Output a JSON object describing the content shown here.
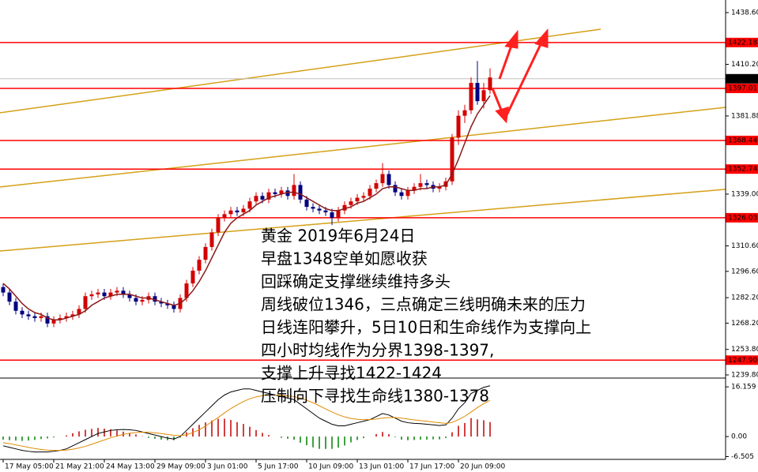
{
  "chart_data": {
    "type": "candlestick",
    "categories": [
      "17 May 05:00",
      null,
      null,
      null,
      null,
      null,
      null,
      null,
      "21 May 21:00",
      null,
      null,
      null,
      null,
      null,
      null,
      null,
      "24 May 13:00",
      null,
      null,
      null,
      null,
      null,
      null,
      null,
      "29 May 09:00",
      null,
      null,
      null,
      null,
      null,
      null,
      null,
      "3 Jun 01:00",
      null,
      null,
      null,
      null,
      null,
      null,
      null,
      "5 Jun 17:00",
      null,
      null,
      null,
      null,
      null,
      null,
      null,
      "10 Jun 09:00",
      null,
      null,
      null,
      null,
      null,
      null,
      null,
      "13 Jun 01:00",
      null,
      null,
      null,
      null,
      null,
      null,
      null,
      "17 Jun 17:00",
      null,
      null,
      null,
      null,
      null,
      null,
      null,
      "20 Jun 09:00",
      null,
      null,
      null,
      null,
      null
    ],
    "open": [
      1288,
      1285,
      1280,
      1275,
      1273,
      1272,
      1271,
      1272,
      1268,
      1270,
      1271,
      1272,
      1273,
      1276,
      1283,
      1284,
      1285,
      1283,
      1285,
      1286,
      1284,
      1282,
      1280,
      1281,
      1283,
      1280,
      1279,
      1278,
      1276,
      1282,
      1290,
      1297,
      1303,
      1310,
      1318,
      1326,
      1328,
      1330,
      1329,
      1331,
      1335,
      1338,
      1336,
      1340,
      1339,
      1341,
      1338,
      1344,
      1336,
      1332,
      1331,
      1330,
      1329,
      1326,
      1330,
      1333,
      1335,
      1337,
      1338,
      1342,
      1345,
      1350,
      1344,
      1340,
      1338,
      1341,
      1343,
      1345,
      1344,
      1342,
      1343,
      1346,
      1370,
      1382,
      1385,
      1400,
      1390,
      1396
    ],
    "high": [
      1290,
      1287,
      1282,
      1277,
      1275,
      1274,
      1274,
      1274,
      1272,
      1273,
      1274,
      1275,
      1278,
      1285,
      1286,
      1287,
      1287,
      1287,
      1288,
      1288,
      1286,
      1284,
      1283,
      1285,
      1285,
      1282,
      1281,
      1280,
      1284,
      1292,
      1299,
      1305,
      1312,
      1320,
      1328,
      1330,
      1332,
      1332,
      1333,
      1337,
      1340,
      1340,
      1342,
      1342,
      1343,
      1343,
      1350,
      1346,
      1338,
      1334,
      1333,
      1332,
      1331,
      1332,
      1335,
      1337,
      1339,
      1340,
      1344,
      1347,
      1356,
      1352,
      1346,
      1342,
      1343,
      1345,
      1350,
      1347,
      1346,
      1345,
      1348,
      1372,
      1385,
      1388,
      1403,
      1412,
      1400,
      1408
    ],
    "low": [
      1283,
      1278,
      1273,
      1271,
      1270,
      1269,
      1269,
      1266,
      1266,
      1268,
      1269,
      1270,
      1271,
      1274,
      1281,
      1282,
      1281,
      1281,
      1283,
      1282,
      1280,
      1278,
      1278,
      1279,
      1278,
      1277,
      1276,
      1274,
      1274,
      1280,
      1288,
      1295,
      1301,
      1308,
      1316,
      1324,
      1326,
      1327,
      1327,
      1329,
      1333,
      1334,
      1334,
      1337,
      1337,
      1336,
      1336,
      1334,
      1330,
      1329,
      1328,
      1327,
      1322,
      1324,
      1328,
      1331,
      1333,
      1335,
      1336,
      1340,
      1343,
      1342,
      1338,
      1336,
      1336,
      1339,
      1341,
      1342,
      1340,
      1340,
      1341,
      1344,
      1366,
      1378,
      1383,
      1388,
      1386,
      1394
    ],
    "close": [
      1285,
      1280,
      1275,
      1273,
      1272,
      1271,
      1272,
      1268,
      1270,
      1271,
      1272,
      1273,
      1276,
      1283,
      1284,
      1285,
      1283,
      1285,
      1286,
      1284,
      1282,
      1280,
      1281,
      1283,
      1280,
      1279,
      1278,
      1276,
      1282,
      1290,
      1297,
      1303,
      1310,
      1318,
      1326,
      1328,
      1330,
      1329,
      1331,
      1335,
      1338,
      1336,
      1340,
      1339,
      1341,
      1338,
      1344,
      1336,
      1332,
      1331,
      1330,
      1329,
      1326,
      1330,
      1333,
      1335,
      1337,
      1338,
      1342,
      1345,
      1350,
      1344,
      1340,
      1338,
      1341,
      1343,
      1345,
      1344,
      1342,
      1343,
      1346,
      1370,
      1382,
      1385,
      1400,
      1390,
      1396,
      1403
    ],
    "up_color": "#d40000",
    "down_color": "#000080",
    "ma": {
      "color": "#8b1a1a",
      "values": [
        1290,
        1287,
        1283,
        1279,
        1276,
        1274,
        1273,
        1271,
        1270,
        1270,
        1271,
        1272,
        1273,
        1275,
        1278,
        1280,
        1282,
        1283,
        1284,
        1284,
        1284,
        1283,
        1282,
        1282,
        1281,
        1280,
        1279,
        1278,
        1279,
        1282,
        1286,
        1291,
        1297,
        1304,
        1311,
        1318,
        1323,
        1326,
        1328,
        1330,
        1333,
        1335,
        1337,
        1338,
        1339,
        1340,
        1340,
        1339,
        1337,
        1335,
        1333,
        1331,
        1330,
        1330,
        1331,
        1332,
        1334,
        1335,
        1337,
        1339,
        1342,
        1343,
        1343,
        1342,
        1341,
        1341,
        1342,
        1342,
        1343,
        1343,
        1344,
        1350,
        1358,
        1367,
        1376,
        1383,
        1388,
        1393
      ]
    },
    "levels": [
      1422.18,
      1397.01,
      1368.44,
      1352.74,
      1326.03,
      {
        "value": 1247.9,
        "label": "1247.90"
      }
    ],
    "levels_color": "#ff0000",
    "last_price": 1402.28,
    "trendlines": [
      {
        "x": [
          -0.5,
          94.5
        ],
        "y": [
          1383.6,
          1429.5
        ]
      },
      {
        "x": [
          -0.5,
          114.25
        ],
        "y": [
          1342.9,
          1386.6
        ]
      },
      {
        "x": [
          -0.5,
          114.25
        ],
        "y": [
          1307.8,
          1341.6
        ]
      }
    ],
    "trendline_color": "#d4a017",
    "ylim": [
      1238.5,
      1445.5
    ],
    "yticks": [
      {
        "value": 1438.6,
        "label": "1438.60"
      },
      {
        "value": 1410.2,
        "label": "1410.20"
      },
      1381.88,
      {
        "value": 1339,
        "label": "1339.00"
      },
      {
        "value": 1310.6,
        "label": "1310.60"
      },
      {
        "value": 1296.6,
        "label": "1296.60"
      },
      {
        "value": 1282.2,
        "label": "1282.20"
      },
      {
        "value": 1268.2,
        "label": "1268.20"
      },
      {
        "value": 1253.8,
        "label": "1253.80"
      },
      {
        "value": 1239.8,
        "label": "1239.80"
      }
    ],
    "indicator": {
      "ylim": [
        -6.9,
        18.5
      ],
      "yticks": [
        16.159,
        {
          "value": 0,
          "label": "0.00"
        },
        -6.505
      ],
      "positive_color": "#c00000",
      "negative_color": "#008000",
      "histogram": [
        -1,
        -1.2,
        -1.3,
        -1.4,
        -1.3,
        -1.1,
        -0.8,
        -0.6,
        -0.3,
        0,
        0.4,
        1.1,
        1.7,
        2.2,
        2.5,
        2.8,
        2.6,
        2.4,
        2,
        1.6,
        1.1,
        0.7,
        0.1,
        -0.4,
        -0.7,
        -1,
        -1.2,
        -1.2,
        -0.3,
        1.4,
        2.7,
        3.8,
        4.6,
        5.2,
        5.8,
        5.8,
        5.4,
        4.7,
        4.1,
        3.2,
        2.1,
        1.2,
        0.5,
        0,
        -0.4,
        -0.7,
        -1,
        -2,
        -2.8,
        -3.5,
        -4,
        -4,
        -4,
        -3.6,
        -2.9,
        -1.9,
        -1.1,
        -0.5,
        0,
        0.8,
        1.5,
        0.8,
        -0.2,
        -1,
        -1.2,
        -1.1,
        -1,
        -1,
        -0.9,
        -0.9,
        -0.5,
        1.4,
        3.5,
        4.4,
        6,
        5.6,
        5.3,
        4.7
      ],
      "series": [
        {
          "color": "#000000",
          "values": [
            -3,
            -3.5,
            -4,
            -4.5,
            -4.8,
            -5,
            -5,
            -5,
            -4.8,
            -4.5,
            -4,
            -3,
            -2,
            -1,
            0,
            1,
            1.5,
            2,
            2.2,
            2.3,
            2.2,
            2,
            1.5,
            1,
            0.5,
            0,
            -0.5,
            -0.8,
            0,
            2,
            4,
            6,
            8,
            10,
            12,
            13.5,
            14.5,
            15,
            15.5,
            15.5,
            15,
            14.5,
            14,
            13.5,
            13,
            12.5,
            12,
            10.5,
            9,
            7.5,
            6,
            5,
            4,
            3.5,
            3.5,
            4,
            4.5,
            5,
            5.5,
            6.5,
            7.5,
            7,
            6,
            5,
            4.5,
            4.3,
            4.2,
            4,
            3.8,
            3.6,
            3.8,
            6,
            9,
            11,
            14,
            15,
            16,
            16.5
          ]
        },
        {
          "color": "#e08a00",
          "values": [
            -2,
            -2.3,
            -2.7,
            -3.1,
            -3.5,
            -3.9,
            -4.2,
            -4.4,
            -4.5,
            -4.5,
            -4.4,
            -4.1,
            -3.7,
            -3.2,
            -2.5,
            -1.8,
            -1.1,
            -0.4,
            0.2,
            0.7,
            1.1,
            1.3,
            1.4,
            1.4,
            1.2,
            1,
            0.7,
            0.4,
            0.3,
            0.6,
            1.3,
            2.2,
            3.4,
            4.8,
            6.2,
            7.7,
            9.1,
            10.3,
            11.4,
            12.3,
            12.9,
            13.3,
            13.5,
            13.5,
            13.4,
            13.2,
            13,
            12.5,
            11.8,
            11,
            10,
            9,
            8,
            7.1,
            6.4,
            5.9,
            5.6,
            5.5,
            5.5,
            5.7,
            6,
            6.2,
            6.2,
            6,
            5.7,
            5.4,
            5.2,
            5,
            4.7,
            4.5,
            4.3,
            4.6,
            5.5,
            6.6,
            8,
            9.4,
            10.7,
            11.8
          ]
        }
      ]
    },
    "annotation": [
      "黄金 2019年6月24日",
      "早盘1348空单如愿收获",
      "回踩确定支撑继续维持多头",
      "周线破位1346，三点确定三线明确未来的压力",
      "日线连阳攀升，5日10日和生命线作为支撑向上",
      "四小时均线作为分界1398-1397,",
      "支撑上升寻找1422-1424",
      "压制向下寻找生命线1380-1378"
    ]
  }
}
